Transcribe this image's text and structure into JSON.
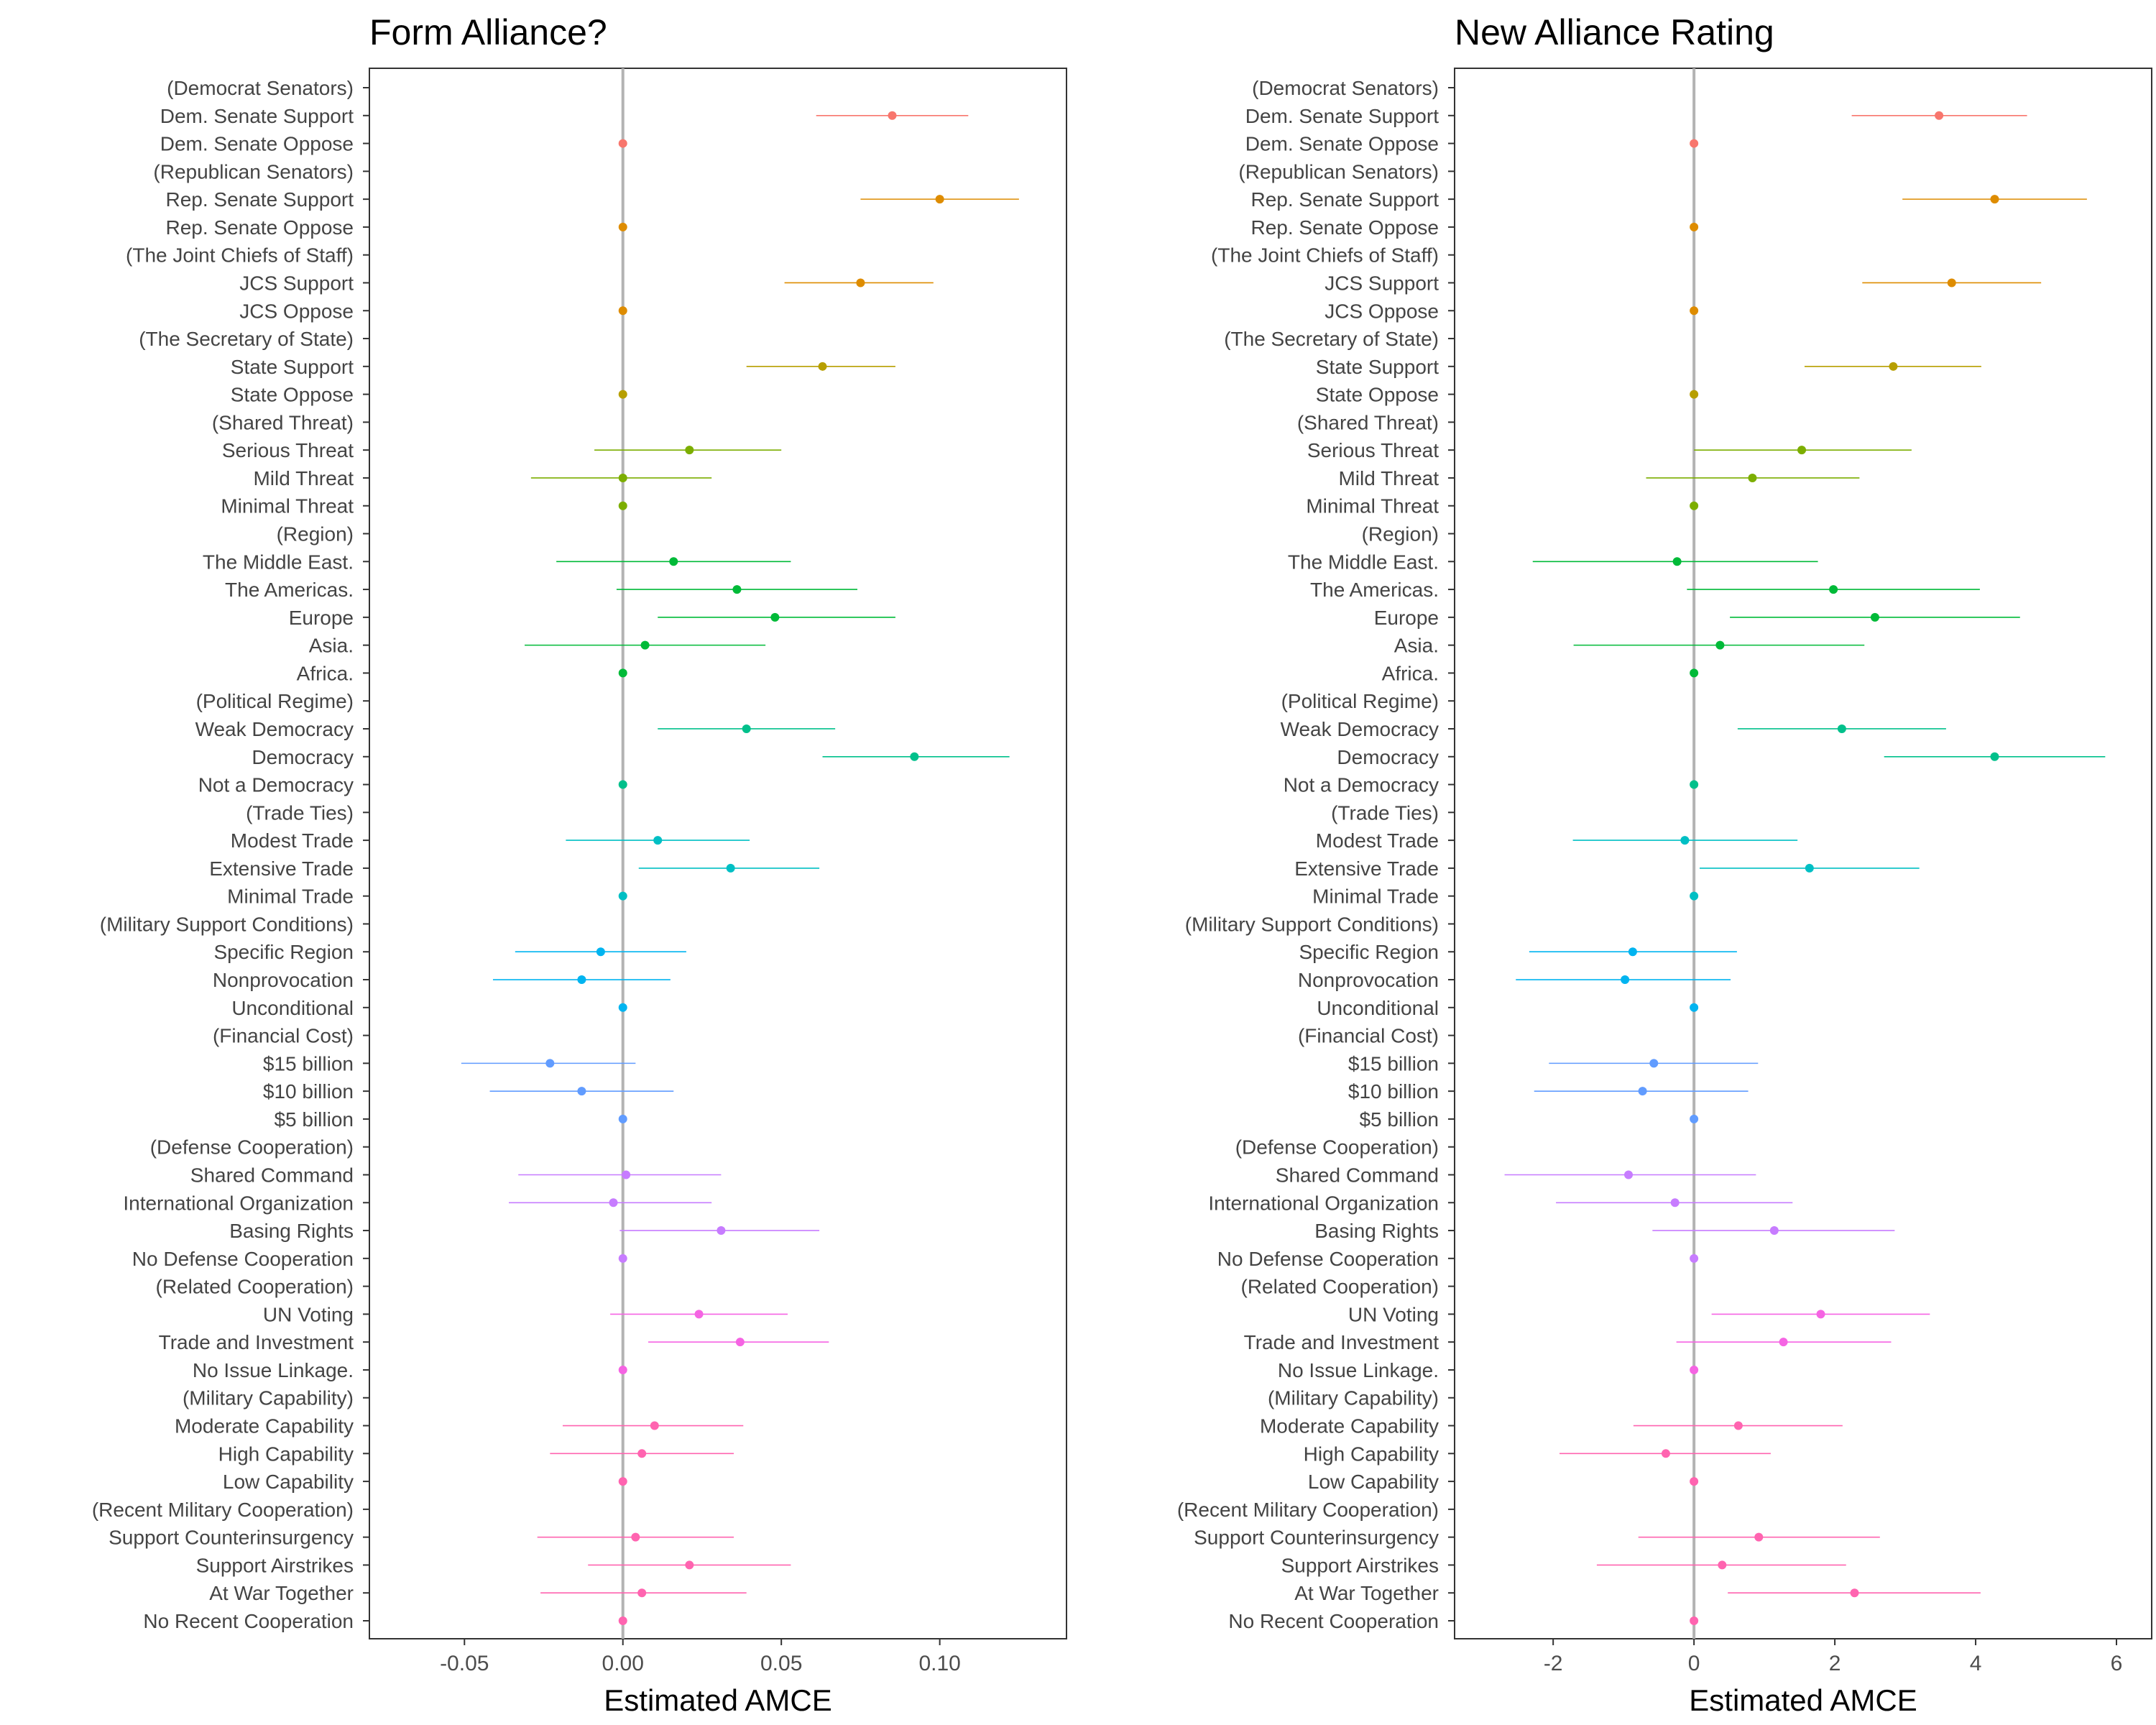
{
  "chart_data": {
    "type": "scatter",
    "row_labels": [
      "(Democrat Senators)",
      "Dem. Senate Support",
      "Dem. Senate Oppose",
      "(Republican Senators)",
      "Rep. Senate Support",
      "Rep. Senate Oppose",
      "(The Joint Chiefs of Staff)",
      "JCS Support",
      "JCS Oppose",
      "(The Secretary of State)",
      "State Support",
      "State Oppose",
      "(Shared Threat)",
      "Serious Threat",
      "Mild Threat",
      "Minimal Threat",
      "(Region)",
      "The Middle East.",
      "The Americas.",
      "Europe",
      "Asia.",
      "Africa.",
      "(Political Regime)",
      "Weak Democracy",
      "Democracy",
      "Not a Democracy",
      "(Trade Ties)",
      "Modest Trade",
      "Extensive Trade",
      "Minimal Trade",
      "(Military Support Conditions)",
      "Specific Region",
      "Nonprovocation",
      "Unconditional",
      "(Financial Cost)",
      "$15 billion",
      "$10 billion",
      "$5 billion",
      "(Defense Cooperation)",
      "Shared Command",
      "International Organization",
      "Basing Rights",
      "No Defense Cooperation",
      "(Related Cooperation)",
      "UN Voting",
      "Trade and Investment",
      "No Issue Linkage.",
      "(Military Capability)",
      "Moderate Capability",
      "High Capability",
      "Low Capability",
      "(Recent Military Cooperation)",
      "Support Counterinsurgency",
      "Support Airstrikes",
      "At War Together",
      "No Recent Cooperation"
    ],
    "row_group": [
      0,
      0,
      0,
      1,
      1,
      1,
      2,
      2,
      2,
      3,
      3,
      3,
      4,
      4,
      4,
      4,
      5,
      5,
      5,
      5,
      5,
      5,
      6,
      6,
      6,
      6,
      7,
      7,
      7,
      7,
      8,
      8,
      8,
      8,
      9,
      9,
      9,
      9,
      10,
      10,
      10,
      10,
      10,
      11,
      11,
      11,
      11,
      12,
      12,
      12,
      12,
      13,
      13,
      13,
      13,
      13
    ],
    "group_colors": [
      "#F8766D",
      "#DE8C00",
      "#B79F00",
      "#7CAE00",
      "#00BA38",
      "#00C08B",
      "#00BFC4",
      "#00B4F0",
      "#619CFF",
      "#C77CFF",
      "#F564E3",
      "#FF64B0"
    ],
    "group_color_index": [
      0,
      1,
      1,
      2,
      3,
      4,
      5,
      6,
      7,
      8,
      9,
      10,
      11,
      11
    ],
    "panels": [
      {
        "title": "Form Alliance?",
        "xlabel": "Estimated AMCE",
        "xlim": [
          -0.08,
          0.14
        ],
        "xticks": [
          "-0.05",
          "0.00",
          "0.05",
          "0.10"
        ],
        "estimates": [
          null,
          0.085,
          0.0,
          null,
          0.1,
          0.0,
          null,
          0.075,
          0.0,
          null,
          0.063,
          0.0,
          null,
          0.021,
          0.0,
          0.0,
          null,
          0.016,
          0.036,
          0.048,
          0.007,
          0.0,
          null,
          0.039,
          0.092,
          0.0,
          null,
          0.011,
          0.034,
          0.0,
          null,
          -0.007,
          -0.013,
          0.0,
          null,
          -0.023,
          -0.013,
          0.0,
          null,
          0.001,
          -0.003,
          0.031,
          0.0,
          null,
          0.024,
          0.037,
          0.0,
          null,
          0.01,
          0.006,
          0.0,
          null,
          0.004,
          0.021,
          0.006,
          0.0
        ],
        "lower": [
          null,
          0.061,
          0.0,
          null,
          0.075,
          0.0,
          null,
          0.051,
          0.0,
          null,
          0.039,
          0.0,
          null,
          -0.009,
          -0.029,
          0.0,
          null,
          -0.021,
          -0.002,
          0.011,
          -0.031,
          0.0,
          null,
          0.011,
          0.063,
          0.0,
          null,
          -0.018,
          0.005,
          0.0,
          null,
          -0.034,
          -0.041,
          0.0,
          null,
          -0.051,
          -0.042,
          0.0,
          null,
          -0.033,
          -0.036,
          -0.001,
          0.0,
          null,
          -0.004,
          0.008,
          0.0,
          null,
          -0.019,
          -0.023,
          0.0,
          null,
          -0.027,
          -0.011,
          -0.026,
          0.0
        ],
        "upper": [
          null,
          0.109,
          0.0,
          null,
          0.125,
          0.0,
          null,
          0.098,
          0.0,
          null,
          0.086,
          0.0,
          null,
          0.05,
          0.028,
          0.0,
          null,
          0.053,
          0.074,
          0.086,
          0.045,
          0.0,
          null,
          0.067,
          0.122,
          0.0,
          null,
          0.04,
          0.062,
          0.0,
          null,
          0.02,
          0.015,
          0.0,
          null,
          0.004,
          0.016,
          0.0,
          null,
          0.031,
          0.028,
          0.062,
          0.0,
          null,
          0.052,
          0.065,
          0.0,
          null,
          0.038,
          0.035,
          0.0,
          null,
          0.035,
          0.053,
          0.039,
          0.0
        ]
      },
      {
        "title": "New Alliance Rating",
        "xlabel": "Estimated AMCE",
        "xlim": [
          -3.4,
          6.5
        ],
        "xticks": [
          "-2",
          "0",
          "2",
          "4",
          "6"
        ],
        "estimates": [
          null,
          3.48,
          0.0,
          null,
          4.27,
          0.0,
          null,
          3.66,
          0.0,
          null,
          2.83,
          0.0,
          null,
          1.53,
          0.83,
          0.0,
          null,
          -0.24,
          1.98,
          2.57,
          0.37,
          0.0,
          null,
          2.1,
          4.27,
          0.0,
          null,
          -0.13,
          1.64,
          0.0,
          null,
          -0.87,
          -0.98,
          0.0,
          null,
          -0.57,
          -0.73,
          0.0,
          null,
          -0.93,
          -0.27,
          1.14,
          0.0,
          null,
          1.8,
          1.27,
          0.0,
          null,
          0.63,
          -0.4,
          0.0,
          null,
          0.92,
          0.4,
          2.28,
          0.0
        ],
        "lower": [
          null,
          2.24,
          0.0,
          null,
          2.96,
          0.0,
          null,
          2.39,
          0.0,
          null,
          1.57,
          0.0,
          null,
          0.0,
          -0.68,
          0.0,
          null,
          -2.29,
          -0.1,
          0.51,
          -1.71,
          0.0,
          null,
          0.62,
          2.7,
          0.0,
          null,
          -1.72,
          0.08,
          0.0,
          null,
          -2.34,
          -2.53,
          0.0,
          null,
          -2.06,
          -2.27,
          0.0,
          null,
          -2.69,
          -1.96,
          -0.59,
          0.0,
          null,
          0.25,
          -0.25,
          0.0,
          null,
          -0.86,
          -1.91,
          0.0,
          null,
          -0.79,
          -1.38,
          0.48,
          0.0
        ],
        "upper": [
          null,
          4.73,
          0.0,
          null,
          5.58,
          0.0,
          null,
          4.93,
          0.0,
          null,
          4.08,
          0.0,
          null,
          3.09,
          2.35,
          0.0,
          null,
          1.76,
          4.06,
          4.63,
          2.42,
          0.0,
          null,
          3.58,
          5.84,
          0.0,
          null,
          1.47,
          3.2,
          0.0,
          null,
          0.61,
          0.52,
          0.0,
          null,
          0.91,
          0.77,
          0.0,
          null,
          0.88,
          1.4,
          2.85,
          0.0,
          null,
          3.35,
          2.8,
          0.0,
          null,
          2.11,
          1.09,
          0.0,
          null,
          2.64,
          2.16,
          4.07,
          0.0
        ]
      }
    ]
  }
}
